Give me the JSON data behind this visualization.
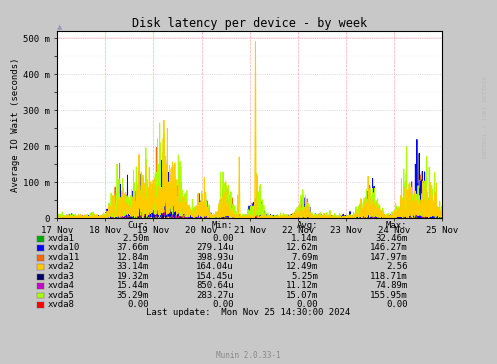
{
  "title": "Disk latency per device - by week",
  "ylabel": "Average IO Wait (seconds)",
  "xlabel_ticks": [
    "17 Nov",
    "18 Nov",
    "19 Nov",
    "20 Nov",
    "21 Nov",
    "22 Nov",
    "23 Nov",
    "24 Nov",
    "25 Nov"
  ],
  "ytick_labels": [
    "0",
    "100 m",
    "200 m",
    "300 m",
    "400 m",
    "500 m"
  ],
  "ylim": [
    0,
    520
  ],
  "xlim": [
    0,
    8
  ],
  "bg_color": "#c8c8c8",
  "plot_bg_color": "#ffffff",
  "watermark": "RRDTOOL / TOBI OETIKER",
  "munin_version": "Munin 2.0.33-1",
  "last_update": "Last update:  Mon Nov 25 14:30:00 2024",
  "legend": [
    {
      "label": "xvda1",
      "color": "#00aa00"
    },
    {
      "label": "xvda10",
      "color": "#0000ff"
    },
    {
      "label": "xvda11",
      "color": "#ff6600"
    },
    {
      "label": "xvda2",
      "color": "#ffcc00"
    },
    {
      "label": "xvda3",
      "color": "#000066"
    },
    {
      "label": "xvda4",
      "color": "#cc00cc"
    },
    {
      "label": "xvda5",
      "color": "#aaff00"
    },
    {
      "label": "xvda8",
      "color": "#ff0000"
    }
  ],
  "table_headers": [
    "Cur:",
    "Min:",
    "Avg:",
    "Max:"
  ],
  "table_data": [
    [
      "2.50m",
      "0.00",
      "1.14m",
      "32.46m"
    ],
    [
      "37.66m",
      "279.14u",
      "12.62m",
      "146.27m"
    ],
    [
      "12.84m",
      "398.93u",
      "7.69m",
      "147.97m"
    ],
    [
      "33.14m",
      "164.04u",
      "12.49m",
      "2.56"
    ],
    [
      "19.32m",
      "154.45u",
      "5.25m",
      "118.71m"
    ],
    [
      "15.44m",
      "850.64u",
      "11.12m",
      "74.89m"
    ],
    [
      "35.29m",
      "283.27u",
      "15.07m",
      "155.95m"
    ],
    [
      "0.00",
      "0.00",
      "0.00",
      "0.00"
    ]
  ]
}
